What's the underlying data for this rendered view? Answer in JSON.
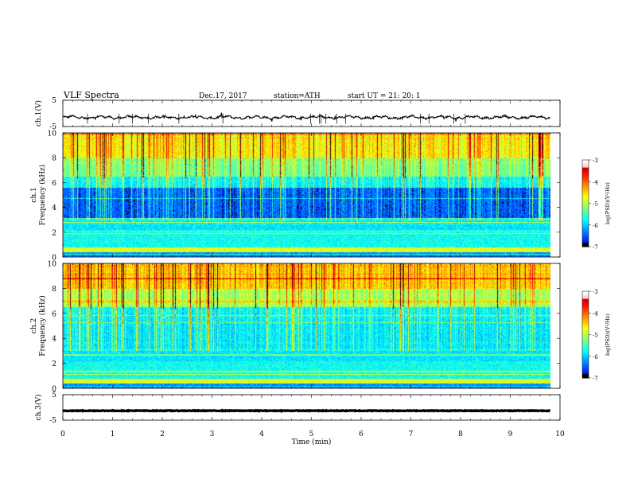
{
  "header": {
    "title": "VLF  Spectra",
    "date": "Dec.17, 2017",
    "station": "station=ATH",
    "start": "start  UT  =    21: 20: 1"
  },
  "chart_data": [
    {
      "type": "line",
      "ylabel": "ch.1(V)",
      "ylim": [
        -5,
        5
      ],
      "yticks": [
        "5",
        "-5"
      ],
      "xlim": [
        0,
        10
      ],
      "data_end_min": 9.8,
      "level": -1.5,
      "color": "#000000"
    },
    {
      "type": "heatmap",
      "ylabel_top": "ch.1",
      "ylabel": "Frequency  (kHz)",
      "ylim": [
        0,
        10
      ],
      "yticks": [
        "0",
        "2",
        "4",
        "6",
        "8",
        "10"
      ],
      "xlim": [
        0,
        10
      ],
      "data_end_min": 9.8,
      "colorbar": {
        "label": "log(PSD)(V²/Hz)",
        "range": [
          -7,
          -3
        ],
        "ticks": [
          "-3",
          "-4",
          "-5",
          "-6",
          "-7"
        ]
      }
    },
    {
      "type": "heatmap",
      "ylabel_top": "ch.2",
      "ylabel": "Frequency  (kHz)",
      "ylim": [
        0,
        10
      ],
      "yticks": [
        "0",
        "2",
        "4",
        "6",
        "8",
        "10"
      ],
      "xlim": [
        0,
        10
      ],
      "data_end_min": 9.8,
      "colorbar": {
        "label": "log(PSD)(V²/Hz)",
        "range": [
          -7,
          -3
        ],
        "ticks": [
          "-3",
          "-4",
          "-5",
          "-6",
          "-7"
        ]
      }
    },
    {
      "type": "line",
      "ylabel": "ch.3(V)",
      "ylim": [
        -5,
        5
      ],
      "yticks": [
        "5",
        "-5"
      ],
      "xlim": [
        0,
        10
      ],
      "data_end_min": 9.8,
      "level": -1.3,
      "color": "#000000",
      "xlabel": "Time  (min)",
      "xticks": [
        "0",
        "1",
        "2",
        "3",
        "4",
        "5",
        "6",
        "7",
        "8",
        "9",
        "10"
      ]
    }
  ]
}
